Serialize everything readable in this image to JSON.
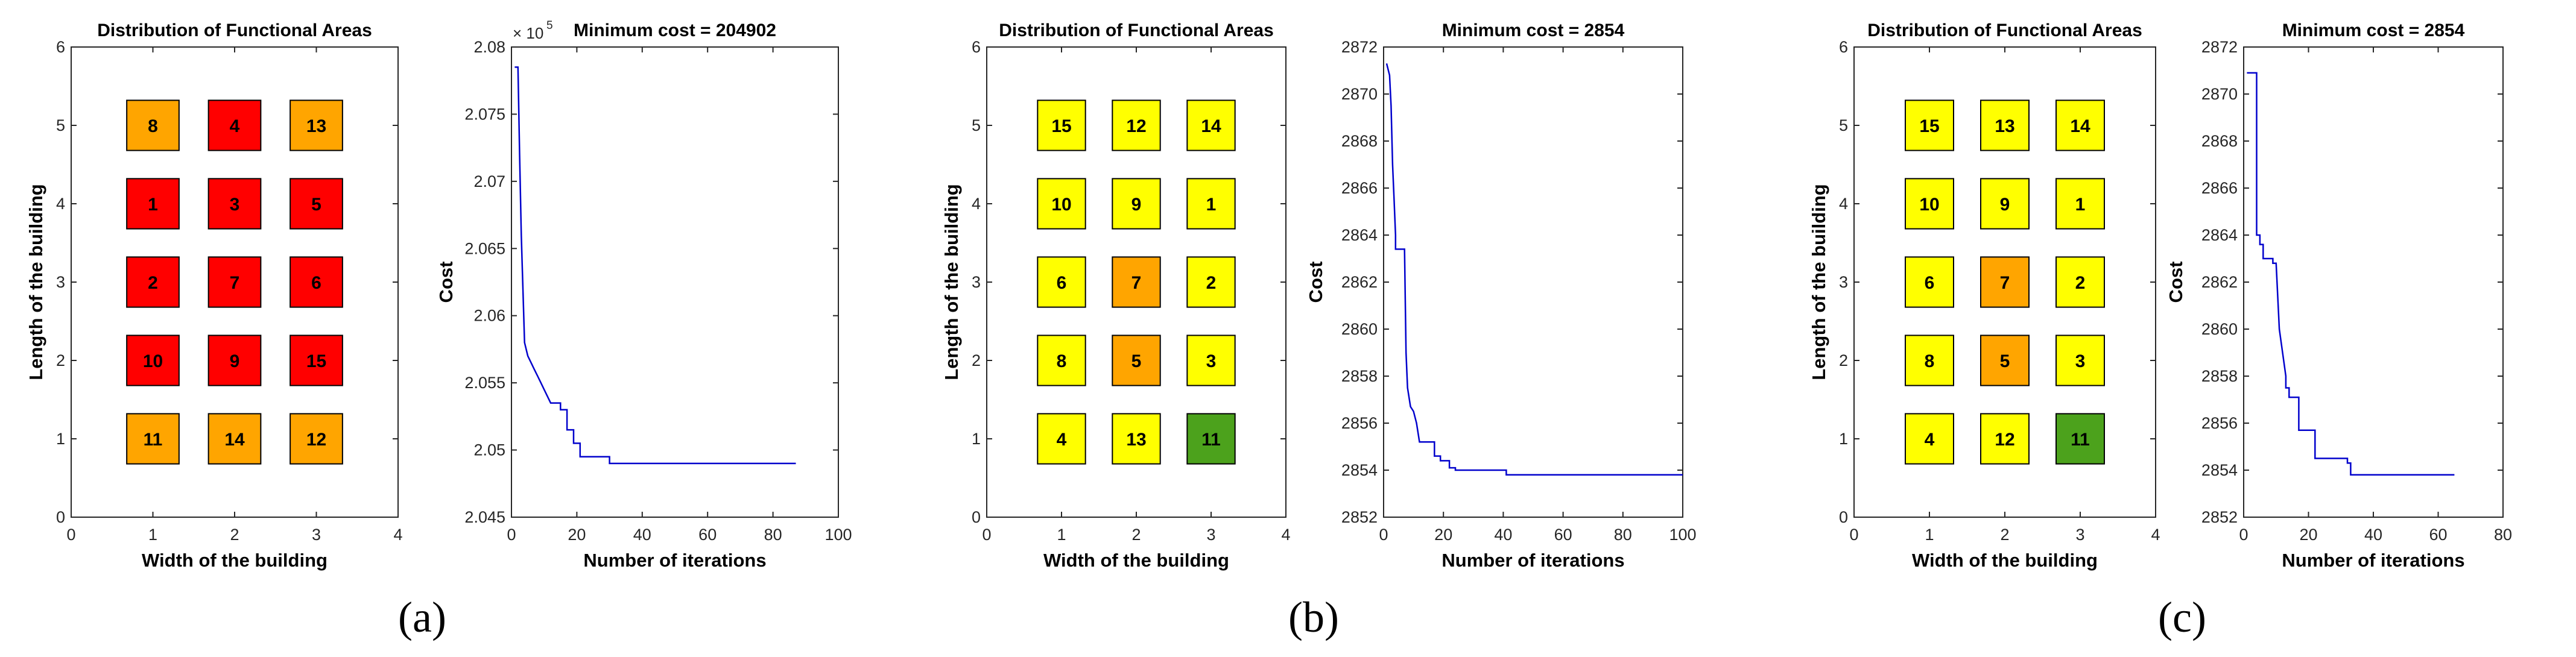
{
  "figure": {
    "panels": [
      {
        "label": "(a)",
        "layout": {
          "title": "Distribution of Functional Areas",
          "xlabel": "Width of the building",
          "ylabel": "Length of the building",
          "xlim": [
            0,
            4
          ],
          "ylim": [
            0,
            6
          ],
          "xticks": [
            0,
            1,
            2,
            3,
            4
          ],
          "yticks": [
            0,
            1,
            2,
            3,
            4,
            5,
            6
          ],
          "cells": [
            {
              "x": 1,
              "y": 5,
              "id": "8",
              "color": "#FFA500"
            },
            {
              "x": 2,
              "y": 5,
              "id": "4",
              "color": "#FF0000"
            },
            {
              "x": 3,
              "y": 5,
              "id": "13",
              "color": "#FFA500"
            },
            {
              "x": 1,
              "y": 4,
              "id": "1",
              "color": "#FF0000"
            },
            {
              "x": 2,
              "y": 4,
              "id": "3",
              "color": "#FF0000"
            },
            {
              "x": 3,
              "y": 4,
              "id": "5",
              "color": "#FF0000"
            },
            {
              "x": 1,
              "y": 3,
              "id": "2",
              "color": "#FF0000"
            },
            {
              "x": 2,
              "y": 3,
              "id": "7",
              "color": "#FF0000"
            },
            {
              "x": 3,
              "y": 3,
              "id": "6",
              "color": "#FF0000"
            },
            {
              "x": 1,
              "y": 2,
              "id": "10",
              "color": "#FF0000"
            },
            {
              "x": 2,
              "y": 2,
              "id": "9",
              "color": "#FF0000"
            },
            {
              "x": 3,
              "y": 2,
              "id": "15",
              "color": "#FF0000"
            },
            {
              "x": 1,
              "y": 1,
              "id": "11",
              "color": "#FFA500"
            },
            {
              "x": 2,
              "y": 1,
              "id": "14",
              "color": "#FFA500"
            },
            {
              "x": 3,
              "y": 1,
              "id": "12",
              "color": "#FFA500"
            }
          ]
        },
        "convergence": {
          "title": "Minimum cost = 204902",
          "xlabel": "Number of iterations",
          "ylabel": "Cost",
          "multiplier_base": "× 10",
          "multiplier_exp": "5",
          "xlim": [
            0,
            100
          ],
          "ylim": [
            2.045,
            2.08
          ],
          "xticks": [
            0,
            20,
            40,
            60,
            80,
            100
          ],
          "yticks": [
            2.045,
            2.05,
            2.055,
            2.06,
            2.065,
            2.07,
            2.075,
            2.08
          ],
          "ytick_labels": [
            "2.045",
            "2.05",
            "2.055",
            "2.06",
            "2.065",
            "2.07",
            "2.075",
            "2.08"
          ],
          "line_color": "#0000CC",
          "series": [
            [
              1,
              2.0785
            ],
            [
              2,
              2.0785
            ],
            [
              2.5,
              2.072
            ],
            [
              3,
              2.066
            ],
            [
              3.5,
              2.062
            ],
            [
              4,
              2.058
            ],
            [
              5,
              2.057
            ],
            [
              6,
              2.0565
            ],
            [
              7,
              2.056
            ],
            [
              8,
              2.0555
            ],
            [
              9,
              2.055
            ],
            [
              10,
              2.0545
            ],
            [
              12,
              2.0535
            ],
            [
              15,
              2.0535
            ],
            [
              15,
              2.053
            ],
            [
              17,
              2.053
            ],
            [
              17,
              2.0515
            ],
            [
              19,
              2.0515
            ],
            [
              19,
              2.0505
            ],
            [
              21,
              2.0505
            ],
            [
              21,
              2.0495
            ],
            [
              30,
              2.0495
            ],
            [
              30,
              2.049
            ],
            [
              87,
              2.049
            ]
          ]
        }
      },
      {
        "label": "(b)",
        "layout": {
          "title": "Distribution of Functional Areas",
          "xlabel": "Width of the building",
          "ylabel": "Length of the building",
          "xlim": [
            0,
            4
          ],
          "ylim": [
            0,
            6
          ],
          "xticks": [
            0,
            1,
            2,
            3,
            4
          ],
          "yticks": [
            0,
            1,
            2,
            3,
            4,
            5,
            6
          ],
          "cells": [
            {
              "x": 1,
              "y": 5,
              "id": "15",
              "color": "#FFFF00"
            },
            {
              "x": 2,
              "y": 5,
              "id": "12",
              "color": "#FFFF00"
            },
            {
              "x": 3,
              "y": 5,
              "id": "14",
              "color": "#FFFF00"
            },
            {
              "x": 1,
              "y": 4,
              "id": "10",
              "color": "#FFFF00"
            },
            {
              "x": 2,
              "y": 4,
              "id": "9",
              "color": "#FFFF00"
            },
            {
              "x": 3,
              "y": 4,
              "id": "1",
              "color": "#FFFF00"
            },
            {
              "x": 1,
              "y": 3,
              "id": "6",
              "color": "#FFFF00"
            },
            {
              "x": 2,
              "y": 3,
              "id": "7",
              "color": "#FFA500"
            },
            {
              "x": 3,
              "y": 3,
              "id": "2",
              "color": "#FFFF00"
            },
            {
              "x": 1,
              "y": 2,
              "id": "8",
              "color": "#FFFF00"
            },
            {
              "x": 2,
              "y": 2,
              "id": "5",
              "color": "#FFA500"
            },
            {
              "x": 3,
              "y": 2,
              "id": "3",
              "color": "#FFFF00"
            },
            {
              "x": 1,
              "y": 1,
              "id": "4",
              "color": "#FFFF00"
            },
            {
              "x": 2,
              "y": 1,
              "id": "13",
              "color": "#FFFF00"
            },
            {
              "x": 3,
              "y": 1,
              "id": "11",
              "color": "#4CA21C"
            }
          ]
        },
        "convergence": {
          "title": "Minimum cost = 2854",
          "xlabel": "Number of iterations",
          "ylabel": "Cost",
          "xlim": [
            0,
            100
          ],
          "ylim": [
            2852,
            2872
          ],
          "xticks": [
            0,
            20,
            40,
            60,
            80,
            100
          ],
          "yticks": [
            2852,
            2854,
            2856,
            2858,
            2860,
            2862,
            2864,
            2866,
            2868,
            2870,
            2872
          ],
          "ytick_labels": [
            "2852",
            "2854",
            "2856",
            "2858",
            "2860",
            "2862",
            "2864",
            "2866",
            "2868",
            "2870",
            "2872"
          ],
          "line_color": "#0000CC",
          "series": [
            [
              1,
              2871.3
            ],
            [
              2,
              2870.8
            ],
            [
              2.5,
              2869.5
            ],
            [
              3,
              2867
            ],
            [
              3.5,
              2865.5
            ],
            [
              4,
              2864
            ],
            [
              4,
              2863.4
            ],
            [
              7,
              2863.4
            ],
            [
              7.5,
              2859
            ],
            [
              8,
              2857.5
            ],
            [
              9,
              2856.7
            ],
            [
              10,
              2856.5
            ],
            [
              11,
              2856
            ],
            [
              12,
              2855.2
            ],
            [
              17,
              2855.2
            ],
            [
              17,
              2854.6
            ],
            [
              19,
              2854.6
            ],
            [
              19,
              2854.4
            ],
            [
              22,
              2854.4
            ],
            [
              22,
              2854.1
            ],
            [
              24,
              2854.1
            ],
            [
              24,
              2854
            ],
            [
              41,
              2854
            ],
            [
              41,
              2853.8
            ],
            [
              100,
              2853.8
            ]
          ]
        }
      },
      {
        "label": "(c)",
        "layout": {
          "title": "Distribution of Functional Areas",
          "xlabel": "Width of the building",
          "ylabel": "Length of the building",
          "xlim": [
            0,
            4
          ],
          "ylim": [
            0,
            6
          ],
          "xticks": [
            0,
            1,
            2,
            3,
            4
          ],
          "yticks": [
            0,
            1,
            2,
            3,
            4,
            5,
            6
          ],
          "cells": [
            {
              "x": 1,
              "y": 5,
              "id": "15",
              "color": "#FFFF00"
            },
            {
              "x": 2,
              "y": 5,
              "id": "13",
              "color": "#FFFF00"
            },
            {
              "x": 3,
              "y": 5,
              "id": "14",
              "color": "#FFFF00"
            },
            {
              "x": 1,
              "y": 4,
              "id": "10",
              "color": "#FFFF00"
            },
            {
              "x": 2,
              "y": 4,
              "id": "9",
              "color": "#FFFF00"
            },
            {
              "x": 3,
              "y": 4,
              "id": "1",
              "color": "#FFFF00"
            },
            {
              "x": 1,
              "y": 3,
              "id": "6",
              "color": "#FFFF00"
            },
            {
              "x": 2,
              "y": 3,
              "id": "7",
              "color": "#FFA500"
            },
            {
              "x": 3,
              "y": 3,
              "id": "2",
              "color": "#FFFF00"
            },
            {
              "x": 1,
              "y": 2,
              "id": "8",
              "color": "#FFFF00"
            },
            {
              "x": 2,
              "y": 2,
              "id": "5",
              "color": "#FFA500"
            },
            {
              "x": 3,
              "y": 2,
              "id": "3",
              "color": "#FFFF00"
            },
            {
              "x": 1,
              "y": 1,
              "id": "4",
              "color": "#FFFF00"
            },
            {
              "x": 2,
              "y": 1,
              "id": "12",
              "color": "#FFFF00"
            },
            {
              "x": 3,
              "y": 1,
              "id": "11",
              "color": "#4CA21C"
            }
          ]
        },
        "convergence": {
          "title": "Minimum cost = 2854",
          "xlabel": "Number of iterations",
          "ylabel": "Cost",
          "xlim": [
            0,
            80
          ],
          "ylim": [
            2852,
            2872
          ],
          "xticks": [
            0,
            20,
            40,
            60,
            80
          ],
          "yticks": [
            2852,
            2854,
            2856,
            2858,
            2860,
            2862,
            2864,
            2866,
            2868,
            2870,
            2872
          ],
          "ytick_labels": [
            "2852",
            "2854",
            "2856",
            "2858",
            "2860",
            "2862",
            "2864",
            "2866",
            "2868",
            "2870",
            "2872"
          ],
          "line_color": "#0000CC",
          "series": [
            [
              1,
              2870.9
            ],
            [
              4,
              2870.9
            ],
            [
              4,
              2864
            ],
            [
              5,
              2864
            ],
            [
              5,
              2863.6
            ],
            [
              6,
              2863.6
            ],
            [
              6,
              2863
            ],
            [
              9,
              2863
            ],
            [
              9,
              2862.8
            ],
            [
              10,
              2862.8
            ],
            [
              11,
              2860
            ],
            [
              12,
              2859
            ],
            [
              13,
              2858
            ],
            [
              13,
              2857.5
            ],
            [
              14,
              2857.5
            ],
            [
              14,
              2857.1
            ],
            [
              17,
              2857.1
            ],
            [
              17,
              2855.7
            ],
            [
              22,
              2855.7
            ],
            [
              22,
              2854.5
            ],
            [
              32,
              2854.5
            ],
            [
              32,
              2854.3
            ],
            [
              33,
              2854.3
            ],
            [
              33,
              2853.8
            ],
            [
              65,
              2853.8
            ]
          ]
        }
      }
    ]
  },
  "chart_data": [
    {
      "panel": "(a)",
      "type": "heatmap",
      "title": "Distribution of Functional Areas",
      "xlabel": "Width of the building",
      "ylabel": "Length of the building",
      "xlim": [
        0,
        4
      ],
      "ylim": [
        0,
        6
      ],
      "rows_top_to_bottom": [
        [
          "8",
          "4",
          "13"
        ],
        [
          "1",
          "3",
          "5"
        ],
        [
          "2",
          "7",
          "6"
        ],
        [
          "10",
          "9",
          "15"
        ],
        [
          "11",
          "14",
          "12"
        ]
      ]
    },
    {
      "panel": "(a)",
      "type": "line",
      "title": "Minimum cost = 204902",
      "xlabel": "Number of iterations",
      "ylabel": "Cost",
      "y_scale": "x 10^5",
      "xlim": [
        0,
        100
      ],
      "ylim": [
        2.045,
        2.08
      ]
    },
    {
      "panel": "(b)",
      "type": "heatmap",
      "title": "Distribution of Functional Areas",
      "xlabel": "Width of the building",
      "ylabel": "Length of the building",
      "xlim": [
        0,
        4
      ],
      "ylim": [
        0,
        6
      ],
      "rows_top_to_bottom": [
        [
          "15",
          "12",
          "14"
        ],
        [
          "10",
          "9",
          "1"
        ],
        [
          "6",
          "7",
          "2"
        ],
        [
          "8",
          "5",
          "3"
        ],
        [
          "4",
          "13",
          "11"
        ]
      ]
    },
    {
      "panel": "(b)",
      "type": "line",
      "title": "Minimum cost = 2854",
      "xlabel": "Number of iterations",
      "ylabel": "Cost",
      "xlim": [
        0,
        100
      ],
      "ylim": [
        2852,
        2872
      ]
    },
    {
      "panel": "(c)",
      "type": "heatmap",
      "title": "Distribution of Functional Areas",
      "xlabel": "Width of the building",
      "ylabel": "Length of the building",
      "xlim": [
        0,
        4
      ],
      "ylim": [
        0,
        6
      ],
      "rows_top_to_bottom": [
        [
          "15",
          "13",
          "14"
        ],
        [
          "10",
          "9",
          "1"
        ],
        [
          "6",
          "7",
          "2"
        ],
        [
          "8",
          "5",
          "3"
        ],
        [
          "4",
          "12",
          "11"
        ]
      ]
    },
    {
      "panel": "(c)",
      "type": "line",
      "title": "Minimum cost = 2854",
      "xlabel": "Number of iterations",
      "ylabel": "Cost",
      "xlim": [
        0,
        80
      ],
      "ylim": [
        2852,
        2872
      ]
    }
  ]
}
